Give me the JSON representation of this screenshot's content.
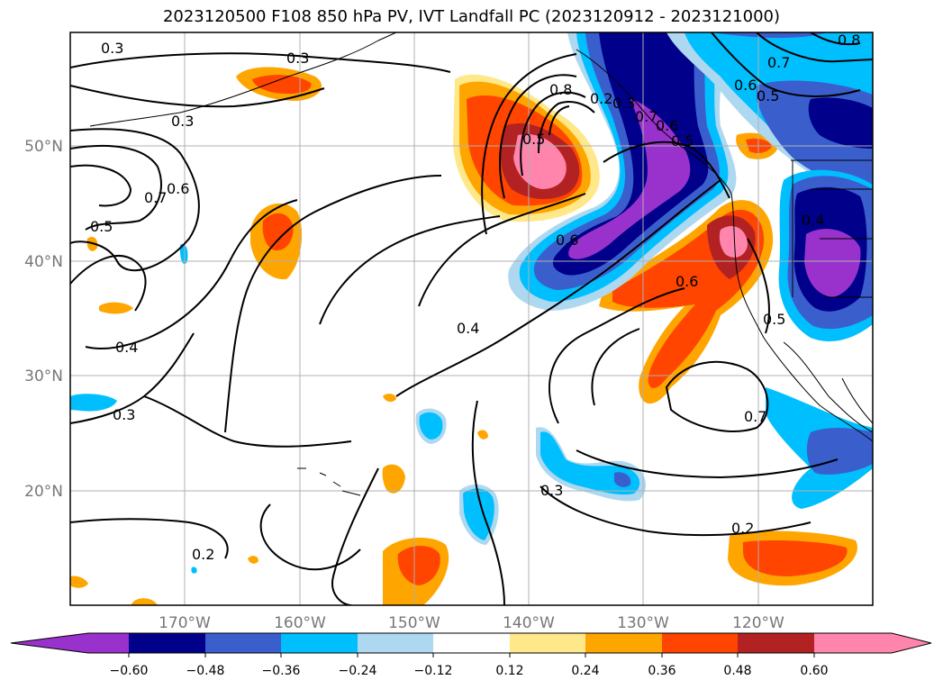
{
  "title": "2023120500 F108 850 hPa PV, IVT Landfall PC (2023120912 - 2023121000)",
  "axes": {
    "lon_labels": [
      "170°W",
      "160°W",
      "150°W",
      "140°W",
      "130°W",
      "120°W"
    ],
    "lat_labels": [
      "50°N",
      "40°N",
      "30°N",
      "20°N"
    ]
  },
  "contour_labels": [
    "0.3",
    "0.3",
    "0.3",
    "0.8",
    "0.7",
    "0.6",
    "0.5",
    "0.5",
    "0.8",
    "0.7",
    "0.6",
    "0.5",
    "0.4",
    "0.3",
    "0.2",
    "0.7",
    "0.6",
    "0.5",
    "0.4",
    "0.3",
    "0.2",
    "0.6",
    "0.4",
    "0.5",
    "0.7",
    "0.6",
    "0.3",
    "0.2"
  ],
  "colorbar": {
    "ticks": [
      "−0.60",
      "−0.48",
      "−0.36",
      "−0.24",
      "−0.12",
      "0.12",
      "0.24",
      "0.36",
      "0.48",
      "0.60"
    ],
    "colors": [
      "#9932cc",
      "#00008b",
      "#3a5fcd",
      "#00bfff",
      "#add8f0",
      "#ffffff",
      "#ffe88a",
      "#ffa500",
      "#ff4500",
      "#b22222",
      "#ff85ad"
    ]
  }
}
